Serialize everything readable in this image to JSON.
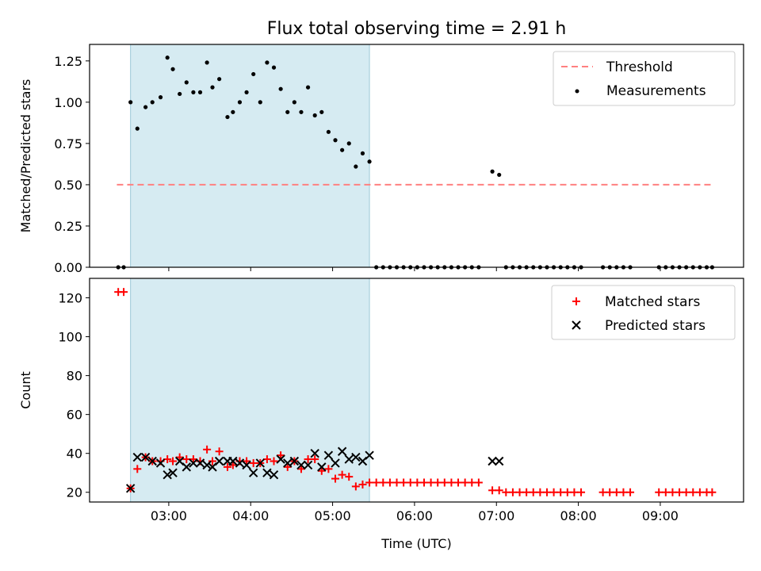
{
  "chart_data": [
    {
      "type": "scatter",
      "title": "Flux total observing time = 2.91 h",
      "xlabel": "",
      "ylabel": "Matched/Predicted stars",
      "ylim": [
        0,
        1.35
      ],
      "yticks": [
        "0.00",
        "0.25",
        "0.50",
        "0.75",
        "1.00",
        "1.25"
      ],
      "xlim": [
        "02:02",
        "10:01"
      ],
      "shaded_interval": [
        "02:32",
        "05:27"
      ],
      "legend_position": "top-right",
      "threshold": {
        "name": "Threshold",
        "y": 0.5,
        "x_range": [
          "02:22",
          "09:37"
        ],
        "color": "#ff8080"
      },
      "series": [
        {
          "name": "Measurements",
          "color": "#000000",
          "points": [
            [
              "02:23",
              0.0
            ],
            [
              "02:27",
              0.0
            ],
            [
              "02:32",
              1.0
            ],
            [
              "02:37",
              0.84
            ],
            [
              "02:43",
              0.97
            ],
            [
              "02:48",
              1.0
            ],
            [
              "02:54",
              1.03
            ],
            [
              "02:59",
              1.27
            ],
            [
              "03:03",
              1.2
            ],
            [
              "03:08",
              1.05
            ],
            [
              "03:13",
              1.12
            ],
            [
              "03:18",
              1.06
            ],
            [
              "03:23",
              1.06
            ],
            [
              "03:28",
              1.24
            ],
            [
              "03:32",
              1.09
            ],
            [
              "03:37",
              1.14
            ],
            [
              "03:43",
              0.91
            ],
            [
              "03:47",
              0.94
            ],
            [
              "03:52",
              1.0
            ],
            [
              "03:57",
              1.06
            ],
            [
              "04:02",
              1.17
            ],
            [
              "04:07",
              1.0
            ],
            [
              "04:12",
              1.24
            ],
            [
              "04:17",
              1.21
            ],
            [
              "04:22",
              1.08
            ],
            [
              "04:27",
              0.94
            ],
            [
              "04:32",
              1.0
            ],
            [
              "04:37",
              0.94
            ],
            [
              "04:42",
              1.09
            ],
            [
              "04:47",
              0.92
            ],
            [
              "04:52",
              0.94
            ],
            [
              "04:57",
              0.82
            ],
            [
              "05:02",
              0.77
            ],
            [
              "05:07",
              0.71
            ],
            [
              "05:12",
              0.75
            ],
            [
              "05:17",
              0.61
            ],
            [
              "05:22",
              0.69
            ],
            [
              "05:27",
              0.64
            ],
            [
              "05:32",
              0.0
            ],
            [
              "05:37",
              0.0
            ],
            [
              "05:42",
              0.0
            ],
            [
              "05:47",
              0.0
            ],
            [
              "05:52",
              0.0
            ],
            [
              "05:57",
              0.0
            ],
            [
              "06:02",
              0.0
            ],
            [
              "06:07",
              0.0
            ],
            [
              "06:12",
              0.0
            ],
            [
              "06:17",
              0.0
            ],
            [
              "06:22",
              0.0
            ],
            [
              "06:27",
              0.0
            ],
            [
              "06:32",
              0.0
            ],
            [
              "06:37",
              0.0
            ],
            [
              "06:42",
              0.0
            ],
            [
              "06:47",
              0.0
            ],
            [
              "06:57",
              0.58
            ],
            [
              "07:02",
              0.56
            ],
            [
              "07:07",
              0.0
            ],
            [
              "07:12",
              0.0
            ],
            [
              "07:17",
              0.0
            ],
            [
              "07:22",
              0.0
            ],
            [
              "07:27",
              0.0
            ],
            [
              "07:32",
              0.0
            ],
            [
              "07:37",
              0.0
            ],
            [
              "07:42",
              0.0
            ],
            [
              "07:47",
              0.0
            ],
            [
              "07:52",
              0.0
            ],
            [
              "07:57",
              0.0
            ],
            [
              "08:02",
              0.0
            ],
            [
              "08:18",
              0.0
            ],
            [
              "08:23",
              0.0
            ],
            [
              "08:28",
              0.0
            ],
            [
              "08:33",
              0.0
            ],
            [
              "08:38",
              0.0
            ],
            [
              "08:59",
              0.0
            ],
            [
              "09:04",
              0.0
            ],
            [
              "09:09",
              0.0
            ],
            [
              "09:14",
              0.0
            ],
            [
              "09:19",
              0.0
            ],
            [
              "09:24",
              0.0
            ],
            [
              "09:29",
              0.0
            ],
            [
              "09:34",
              0.0
            ],
            [
              "09:38",
              0.0
            ]
          ]
        }
      ]
    },
    {
      "type": "scatter",
      "title": "",
      "xlabel": "Time (UTC)",
      "ylabel": "Count",
      "ylim": [
        15,
        130
      ],
      "yticks": [
        "20",
        "40",
        "60",
        "80",
        "100",
        "120"
      ],
      "xlim": [
        "02:02",
        "10:01"
      ],
      "xticks": [
        "03:00",
        "04:00",
        "05:00",
        "06:00",
        "07:00",
        "08:00",
        "09:00"
      ],
      "shaded_interval": [
        "02:32",
        "05:27"
      ],
      "legend_position": "top-right",
      "series": [
        {
          "name": "Matched stars",
          "marker": "+",
          "color": "#ff0000",
          "points": [
            [
              "02:23",
              123
            ],
            [
              "02:27",
              123
            ],
            [
              "02:32",
              22
            ],
            [
              "02:37",
              32
            ],
            [
              "02:43",
              38
            ],
            [
              "02:48",
              36
            ],
            [
              "02:54",
              36
            ],
            [
              "02:59",
              37
            ],
            [
              "03:03",
              36
            ],
            [
              "03:08",
              38
            ],
            [
              "03:13",
              37
            ],
            [
              "03:18",
              37
            ],
            [
              "03:23",
              36
            ],
            [
              "03:28",
              42
            ],
            [
              "03:32",
              36
            ],
            [
              "03:37",
              41
            ],
            [
              "03:43",
              33
            ],
            [
              "03:47",
              34
            ],
            [
              "03:52",
              36
            ],
            [
              "03:57",
              36
            ],
            [
              "04:02",
              35
            ],
            [
              "04:07",
              35
            ],
            [
              "04:12",
              37
            ],
            [
              "04:17",
              36
            ],
            [
              "04:22",
              39
            ],
            [
              "04:27",
              33
            ],
            [
              "04:32",
              36
            ],
            [
              "04:37",
              32
            ],
            [
              "04:42",
              37
            ],
            [
              "04:47",
              37
            ],
            [
              "04:52",
              31
            ],
            [
              "04:57",
              32
            ],
            [
              "05:02",
              27
            ],
            [
              "05:07",
              29
            ],
            [
              "05:12",
              28
            ],
            [
              "05:17",
              23
            ],
            [
              "05:22",
              24
            ],
            [
              "05:27",
              25
            ],
            [
              "05:32",
              25
            ],
            [
              "05:37",
              25
            ],
            [
              "05:42",
              25
            ],
            [
              "05:47",
              25
            ],
            [
              "05:52",
              25
            ],
            [
              "05:57",
              25
            ],
            [
              "06:02",
              25
            ],
            [
              "06:07",
              25
            ],
            [
              "06:12",
              25
            ],
            [
              "06:17",
              25
            ],
            [
              "06:22",
              25
            ],
            [
              "06:27",
              25
            ],
            [
              "06:32",
              25
            ],
            [
              "06:37",
              25
            ],
            [
              "06:42",
              25
            ],
            [
              "06:47",
              25
            ],
            [
              "06:57",
              21
            ],
            [
              "07:02",
              21
            ],
            [
              "07:07",
              20
            ],
            [
              "07:12",
              20
            ],
            [
              "07:17",
              20
            ],
            [
              "07:22",
              20
            ],
            [
              "07:27",
              20
            ],
            [
              "07:32",
              20
            ],
            [
              "07:37",
              20
            ],
            [
              "07:42",
              20
            ],
            [
              "07:47",
              20
            ],
            [
              "07:52",
              20
            ],
            [
              "07:57",
              20
            ],
            [
              "08:02",
              20
            ],
            [
              "08:18",
              20
            ],
            [
              "08:23",
              20
            ],
            [
              "08:28",
              20
            ],
            [
              "08:33",
              20
            ],
            [
              "08:38",
              20
            ],
            [
              "08:59",
              20
            ],
            [
              "09:04",
              20
            ],
            [
              "09:09",
              20
            ],
            [
              "09:14",
              20
            ],
            [
              "09:19",
              20
            ],
            [
              "09:24",
              20
            ],
            [
              "09:29",
              20
            ],
            [
              "09:34",
              20
            ],
            [
              "09:38",
              20
            ]
          ]
        },
        {
          "name": "Predicted stars",
          "marker": "x",
          "color": "#000000",
          "points": [
            [
              "02:32",
              22
            ],
            [
              "02:37",
              38
            ],
            [
              "02:43",
              38
            ],
            [
              "02:48",
              36
            ],
            [
              "02:54",
              35
            ],
            [
              "02:59",
              29
            ],
            [
              "03:03",
              30
            ],
            [
              "03:08",
              36
            ],
            [
              "03:13",
              33
            ],
            [
              "03:18",
              35
            ],
            [
              "03:23",
              35
            ],
            [
              "03:28",
              34
            ],
            [
              "03:32",
              33
            ],
            [
              "03:37",
              36
            ],
            [
              "03:43",
              36
            ],
            [
              "03:47",
              36
            ],
            [
              "03:52",
              35
            ],
            [
              "03:57",
              34
            ],
            [
              "04:02",
              30
            ],
            [
              "04:07",
              35
            ],
            [
              "04:12",
              30
            ],
            [
              "04:17",
              29
            ],
            [
              "04:22",
              37
            ],
            [
              "04:27",
              35
            ],
            [
              "04:32",
              36
            ],
            [
              "04:37",
              34
            ],
            [
              "04:42",
              34
            ],
            [
              "04:47",
              40
            ],
            [
              "04:52",
              33
            ],
            [
              "04:57",
              39
            ],
            [
              "05:02",
              35
            ],
            [
              "05:07",
              41
            ],
            [
              "05:12",
              37
            ],
            [
              "05:17",
              38
            ],
            [
              "05:22",
              36
            ],
            [
              "05:27",
              39
            ],
            [
              "06:57",
              36
            ],
            [
              "07:02",
              36
            ]
          ]
        }
      ]
    }
  ]
}
